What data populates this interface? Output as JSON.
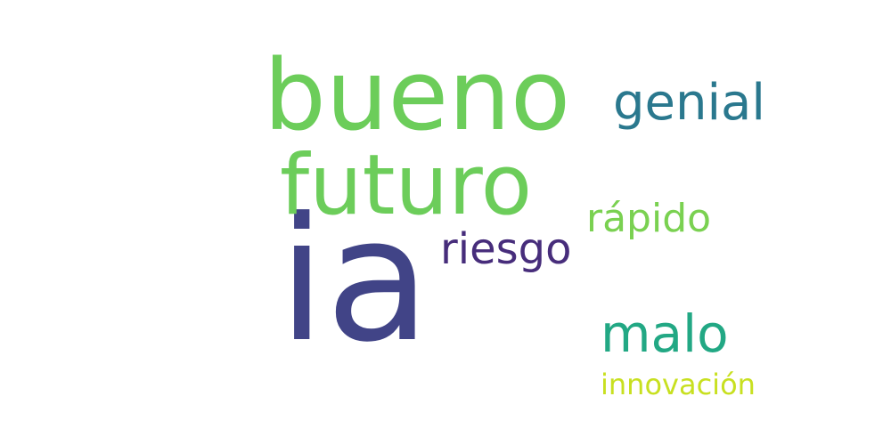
{
  "words": [
    {
      "text": "ia",
      "color": "#414487"
    },
    {
      "text": "bueno",
      "color": "#6ccd5a"
    },
    {
      "text": "futuro",
      "color": "#6ccd5a"
    },
    {
      "text": "genial",
      "color": "#2a788e"
    },
    {
      "text": "riesgo",
      "color": "#472d7b"
    },
    {
      "text": "rápido",
      "color": "#7ad151"
    },
    {
      "text": "malo",
      "color": "#22a884"
    },
    {
      "text": "innovación",
      "color": "#c8e020"
    }
  ]
}
